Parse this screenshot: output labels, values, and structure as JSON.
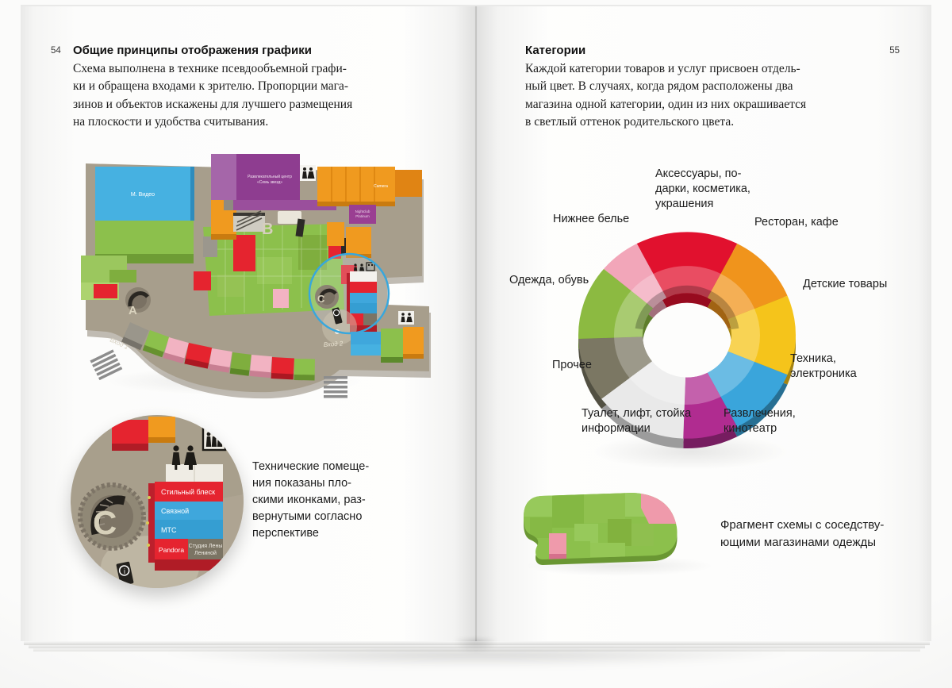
{
  "palette": {
    "page_bg": "#fcfcfb",
    "map_base": "#a79e8c",
    "highlight_circle": "#37a7dd",
    "category_red": "#e1112e",
    "category_orange": "#f0941c",
    "category_yellow": "#f5c41b",
    "category_blue": "#3aa5db",
    "category_magenta": "#b02c90",
    "category_white": "#e9e9e9",
    "category_olive": "#7b7763",
    "category_green": "#8cba41",
    "category_pink": "#f2a6b9"
  },
  "left_page": {
    "page_number": "54",
    "title": "Общие принципы отображения графики",
    "body": "Схема выполнена в технике псевдообъемной графи-\nки и обращена входами к зрителю. Пропорции мага-\nзинов и объектов искажены для лучшего размещения\nна плоскости и удобства считывания.",
    "map": {
      "letter_a": "А",
      "letter_b": "В",
      "letter_c": "С",
      "entrance_1": "Вход 1",
      "entrance_2": "Вход 2",
      "store_blue_block": "М. Видео",
      "center_line_1": "Развлекательный центр",
      "center_line_2": "«Семь звезд»",
      "nightclub_line_1": "Nightclub",
      "nightclub_line_2": "Platinum",
      "store_camera": "Camera"
    },
    "callout": {
      "letter": "С",
      "stores": [
        "Стильный блеск",
        "Связной",
        "МТС",
        "Pandora"
      ],
      "store_5_line_1": "Студия Лены",
      "store_5_line_2": "Лениной",
      "info_icon_glyph": "i",
      "caption": "Технические помеще-\nния показаны пло-\nскими иконками, раз-\nвернутыми согласно\nперспективе"
    }
  },
  "right_page": {
    "page_number": "55",
    "title": "Категории",
    "body": "Каждой категории товаров и услуг присвоен отдель-\nный цвет. В случаях, когда рядом расположены два\nмагазина одной категории, один из них окрашивается\nв светлый оттенок родительского цвета.",
    "fragment_caption": "Фрагмент схемы с соседству-\nющими магазинами одежды"
  },
  "chart_data": {
    "type": "pie",
    "variant": "donut-3d",
    "title": "",
    "start_angle": -27.5,
    "legend_position": "around",
    "center_hole": true,
    "segments": [
      {
        "label": "Аксессуары, подарки, косметика, украшения",
        "display": "Аксессуары, по-\nдарки, косметика,\nукрашения",
        "color": "#e1112e",
        "angle_deg": 55,
        "share_pct": 15.3
      },
      {
        "label": "Ресторан, кафе",
        "display": "Ресторан, кафе",
        "color": "#f0941c",
        "angle_deg": 40,
        "share_pct": 11.1
      },
      {
        "label": "Детские товары",
        "display": "Детские товары",
        "color": "#f5c41b",
        "angle_deg": 45,
        "share_pct": 12.5
      },
      {
        "label": "Техника, электроника",
        "display": "Техника,\nэлектроника",
        "color": "#3aa5db",
        "angle_deg": 40,
        "share_pct": 11.1
      },
      {
        "label": "Развлечения, кинотеатр",
        "display": "Развлечения,\nкинотеатр",
        "color": "#b02c90",
        "angle_deg": 29.5,
        "share_pct": 8.2
      },
      {
        "label": "Туалет, лифт, стойка информации",
        "display": "Туалет, лифт, стойка\nинформации",
        "color": "#e9e9e9",
        "angle_deg": 50,
        "share_pct": 13.9
      },
      {
        "label": "Прочее",
        "display": "Прочее",
        "color": "#7b7763",
        "angle_deg": 36,
        "share_pct": 10.0
      },
      {
        "label": "Одежда, обувь",
        "display": "Одежда, обувь",
        "color": "#8cba41",
        "angle_deg": 42,
        "share_pct": 11.7
      },
      {
        "label": "Нижнее белье",
        "display": "Нижнее белье",
        "color": "#f2a6b9",
        "angle_deg": 22.5,
        "share_pct": 6.2
      }
    ]
  }
}
